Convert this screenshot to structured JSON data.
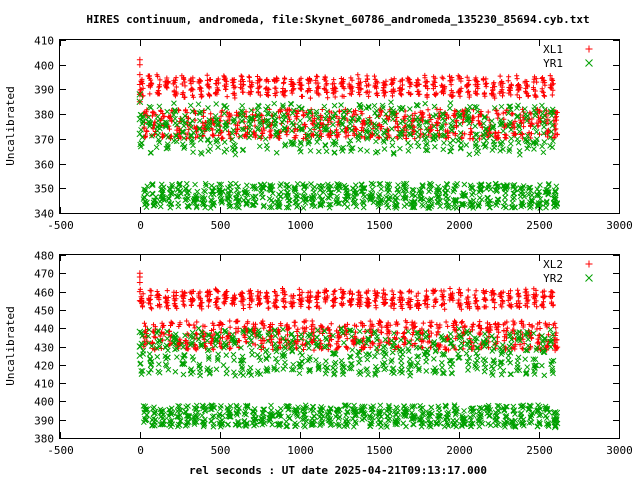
{
  "page": {
    "title": "HIRES continuum, andromeda, file:Skynet_60786_andromeda_135230_85694.cyb.txt",
    "xlabel": "rel seconds : UT date 2025-04-21T09:13:17.000"
  },
  "chart_data": [
    {
      "type": "scatter",
      "ylabel": "Uncalibrated",
      "xlim": [
        -500,
        3000
      ],
      "ylim": [
        340,
        410
      ],
      "x_ticks": [
        -500,
        0,
        500,
        1000,
        1500,
        2000,
        2500,
        3000
      ],
      "y_ticks": [
        340,
        350,
        360,
        370,
        380,
        390,
        400,
        410
      ],
      "legend_position": "top-right",
      "grid": false,
      "series": [
        {
          "name": "XL1",
          "marker": "plus",
          "color": "#ff0000",
          "x_range": [
            0,
            2600
          ],
          "cycle_period_s": 52.4,
          "low_band": [
            370,
            382
          ],
          "high_band": [
            388,
            396
          ],
          "initial_values": [
            385,
            388,
            392,
            396,
            400,
            402
          ],
          "final_values": [
            372,
            376,
            380
          ]
        },
        {
          "name": "YR1",
          "marker": "cross",
          "color": "#00a000",
          "x_range": [
            0,
            2600
          ],
          "cycle_period_s": 52.4,
          "low_band": [
            342,
            352
          ],
          "high_band": [
            365,
            385
          ],
          "initial_values": [
            372,
            378,
            385,
            388
          ],
          "final_values": [
            343,
            346,
            349
          ]
        }
      ]
    },
    {
      "type": "scatter",
      "ylabel": "Uncalibrated",
      "xlim": [
        -500,
        3000
      ],
      "ylim": [
        380,
        480
      ],
      "x_ticks": [
        -500,
        0,
        500,
        1000,
        1500,
        2000,
        2500,
        3000
      ],
      "y_ticks": [
        380,
        390,
        400,
        410,
        420,
        430,
        440,
        450,
        460,
        470,
        480
      ],
      "legend_position": "top-right",
      "grid": false,
      "series": [
        {
          "name": "XL2",
          "marker": "plus",
          "color": "#ff0000",
          "x_range": [
            0,
            2600
          ],
          "cycle_period_s": 52.4,
          "low_band": [
            428,
            444
          ],
          "high_band": [
            452,
            462
          ],
          "initial_values": [
            455,
            460,
            465,
            468,
            470
          ],
          "final_values": [
            428,
            432,
            436
          ]
        },
        {
          "name": "YR2",
          "marker": "cross",
          "color": "#00a000",
          "x_range": [
            0,
            2600
          ],
          "cycle_period_s": 52.4,
          "low_band": [
            386,
            398
          ],
          "high_band": [
            415,
            440
          ],
          "initial_values": [
            425,
            430,
            438
          ],
          "final_values": [
            386,
            390,
            394
          ]
        }
      ]
    }
  ]
}
